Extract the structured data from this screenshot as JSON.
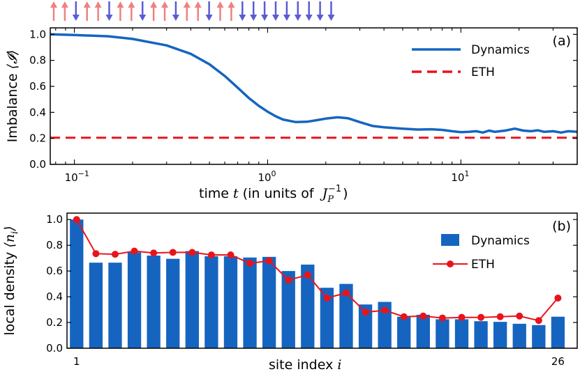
{
  "colors": {
    "dynamics": "#1565C0",
    "eth": "#E8141B",
    "spin_up": "#F08080",
    "spin_down": "#5B5BD6"
  },
  "spin_config": [
    "up",
    "up",
    "down",
    "up",
    "up",
    "down",
    "up",
    "up",
    "down",
    "up",
    "up",
    "down",
    "up",
    "up",
    "down",
    "up",
    "up",
    "down",
    "down",
    "down",
    "down",
    "down",
    "down",
    "down",
    "down",
    "down"
  ],
  "chart_data": [
    {
      "panel": "(a)",
      "type": "line",
      "x_scale": "log",
      "xlim": [
        0.075,
        40
      ],
      "ylim": [
        0,
        1.05
      ],
      "yticks": [
        "0.0",
        "0.2",
        "0.4",
        "0.6",
        "0.8",
        "1.0"
      ],
      "xticks": [
        {
          "base": "10",
          "exp": "−1"
        },
        {
          "base": "10",
          "exp": "0"
        },
        {
          "base": "10",
          "exp": "1"
        }
      ],
      "ylabel_text": "Imbalance",
      "ylabel_math": "⟨𝓘⟩",
      "xlabel": {
        "pre": "time",
        "var": "t",
        "mid": "(in units of",
        "sym": "J",
        "sub": "P",
        "sup": "−1",
        "post": ")"
      },
      "legend": [
        "Dynamics",
        "ETH"
      ],
      "series": [
        {
          "name": "Dynamics",
          "style": "solid",
          "x": [
            0.075,
            0.1,
            0.15,
            0.2,
            0.3,
            0.4,
            0.5,
            0.6,
            0.7,
            0.8,
            0.9,
            1.0,
            1.1,
            1.2,
            1.4,
            1.6,
            1.8,
            2.0,
            2.3,
            2.6,
            3.0,
            3.5,
            4,
            5,
            6,
            7,
            8,
            9,
            10,
            11,
            12,
            13,
            14,
            15,
            17,
            19,
            21,
            23,
            25,
            27,
            30,
            33,
            36,
            40
          ],
          "y": [
            1.0,
            0.995,
            0.985,
            0.965,
            0.915,
            0.85,
            0.77,
            0.68,
            0.59,
            0.51,
            0.45,
            0.405,
            0.37,
            0.345,
            0.325,
            0.328,
            0.34,
            0.352,
            0.362,
            0.355,
            0.325,
            0.295,
            0.285,
            0.275,
            0.268,
            0.27,
            0.265,
            0.255,
            0.248,
            0.25,
            0.255,
            0.245,
            0.26,
            0.25,
            0.26,
            0.275,
            0.26,
            0.255,
            0.262,
            0.25,
            0.255,
            0.245,
            0.255,
            0.25
          ]
        },
        {
          "name": "ETH",
          "style": "dashed",
          "x": [
            0.075,
            40
          ],
          "y": [
            0.205,
            0.205
          ]
        }
      ]
    },
    {
      "panel": "(b)",
      "type": "bar",
      "xlim": [
        0.5,
        27
      ],
      "ylim": [
        0,
        1.05
      ],
      "yticks": [
        "0.0",
        "0.2",
        "0.4",
        "0.6",
        "0.8",
        "1.0"
      ],
      "xtick_labels": [
        "1",
        "26"
      ],
      "ylabel_text": "local density",
      "ylabel_math": "⟨n",
      "ylabel_sub": "i",
      "xlabel": {
        "pre": "site index",
        "var": "i"
      },
      "legend": [
        "Dynamics",
        "ETH"
      ],
      "sites": [
        1,
        2,
        3,
        4,
        5,
        6,
        7,
        8,
        9,
        10,
        11,
        12,
        13,
        14,
        15,
        16,
        17,
        18,
        19,
        20,
        21,
        22,
        23,
        24,
        25,
        26
      ],
      "series": [
        {
          "name": "Dynamics",
          "style": "bar",
          "values": [
            1.0,
            0.665,
            0.665,
            0.745,
            0.72,
            0.695,
            0.755,
            0.715,
            0.715,
            0.705,
            0.71,
            0.6,
            0.65,
            0.47,
            0.5,
            0.34,
            0.36,
            0.245,
            0.26,
            0.225,
            0.225,
            0.21,
            0.205,
            0.19,
            0.18,
            0.245
          ]
        },
        {
          "name": "ETH",
          "style": "line-marker",
          "values": [
            1.0,
            0.735,
            0.73,
            0.755,
            0.74,
            0.745,
            0.745,
            0.725,
            0.725,
            0.66,
            0.68,
            0.53,
            0.57,
            0.39,
            0.43,
            0.28,
            0.295,
            0.245,
            0.25,
            0.235,
            0.24,
            0.24,
            0.245,
            0.25,
            0.215,
            0.39
          ]
        }
      ]
    }
  ]
}
